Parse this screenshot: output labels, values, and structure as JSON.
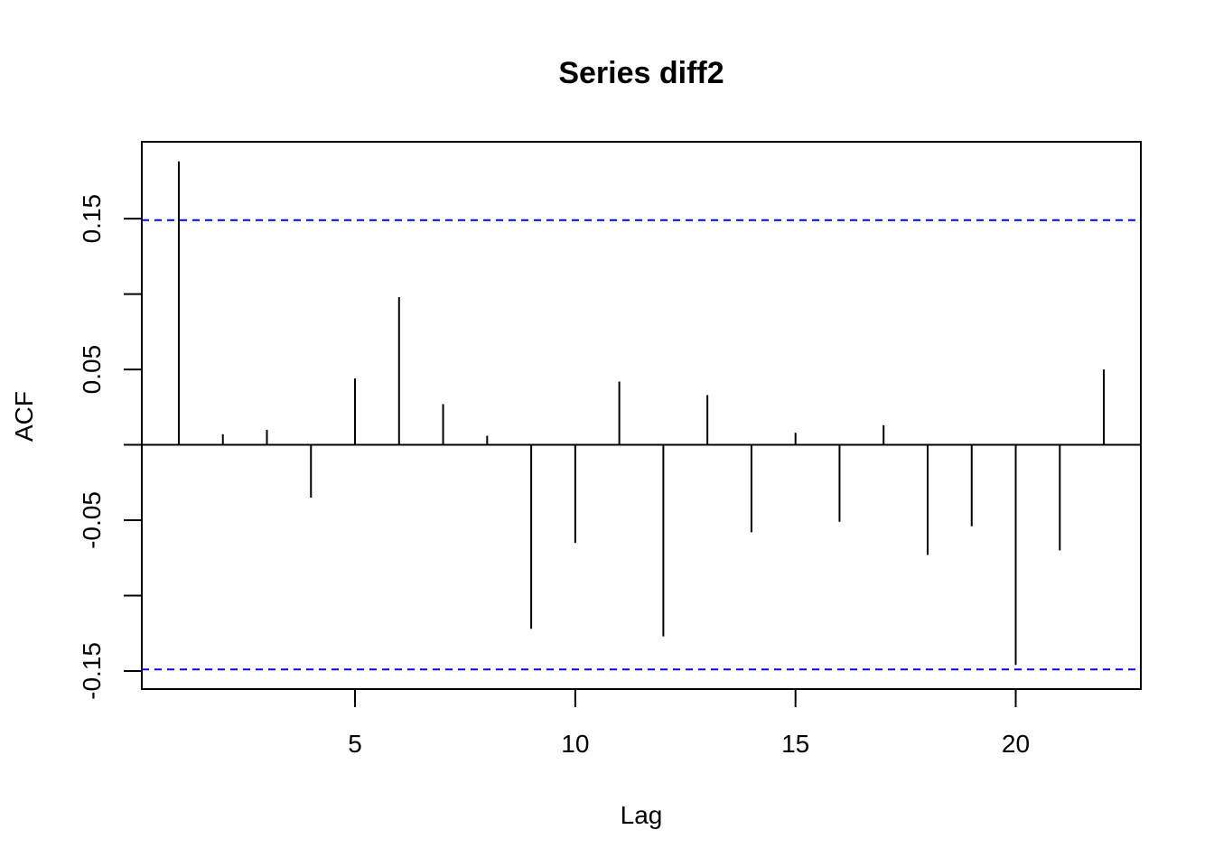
{
  "chart_data": {
    "type": "bar",
    "title": "Series diff2",
    "xlabel": "Lag",
    "ylabel": "ACF",
    "x": [
      1,
      2,
      3,
      4,
      5,
      6,
      7,
      8,
      9,
      10,
      11,
      12,
      13,
      14,
      15,
      16,
      17,
      18,
      19,
      20,
      21,
      22
    ],
    "values": [
      0.188,
      0.007,
      0.01,
      -0.035,
      0.044,
      0.098,
      0.027,
      0.006,
      -0.122,
      -0.065,
      0.042,
      -0.127,
      0.033,
      -0.058,
      0.008,
      -0.051,
      0.013,
      -0.073,
      -0.054,
      -0.146,
      -0.07,
      0.05
    ],
    "ci": 0.149,
    "xlim": [
      0.16,
      22.84
    ],
    "ylim": [
      -0.162,
      0.201
    ],
    "x_ticks": [
      5,
      10,
      15,
      20
    ],
    "y_ticks": [
      -0.15,
      -0.1,
      -0.05,
      0.0,
      0.05,
      0.1,
      0.15
    ],
    "y_tick_labels": [
      {
        "value": -0.15,
        "label": "-0.15"
      },
      {
        "value": -0.05,
        "label": "-0.05"
      },
      {
        "value": 0.05,
        "label": "0.05"
      },
      {
        "value": 0.15,
        "label": "0.15"
      }
    ],
    "ci_color": "#0000ff",
    "bar_color": "#000000",
    "grid": false
  }
}
